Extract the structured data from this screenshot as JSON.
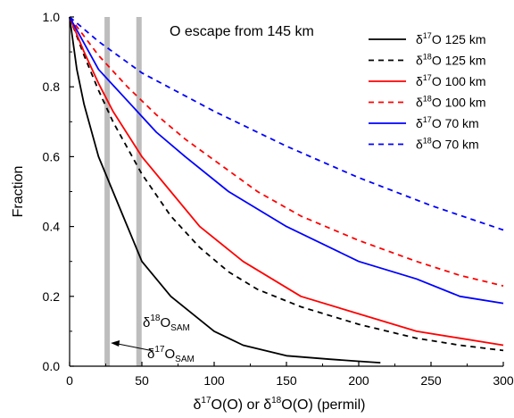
{
  "chart_data": {
    "type": "line",
    "annotation_title": "O escape from 145 km",
    "xlabel_parts": [
      "δ",
      "17",
      "O(O) or δ",
      "18",
      "O(O) (permil)"
    ],
    "ylabel": "Fraction",
    "xlim": [
      0,
      300
    ],
    "ylim": [
      0,
      1.0
    ],
    "x_ticks": [
      0,
      50,
      100,
      150,
      200,
      250,
      300
    ],
    "y_ticks": [
      0.0,
      0.2,
      0.4,
      0.6,
      0.8,
      1.0
    ],
    "x_tick_labels": [
      "0",
      "50",
      "100",
      "150",
      "200",
      "250",
      "300"
    ],
    "y_tick_labels": [
      "0.0",
      "0.2",
      "0.4",
      "0.6",
      "0.8",
      "1.0"
    ],
    "vertical_bands": [
      {
        "x": 26,
        "color": "#bdbdbd"
      },
      {
        "x": 48,
        "color": "#bdbdbd"
      }
    ],
    "sam_labels": [
      {
        "delta": "δ",
        "mass": "18",
        "element": "O",
        "sub": "SAM"
      },
      {
        "delta": "δ",
        "mass": "17",
        "element": "O",
        "sub": "SAM"
      }
    ],
    "series": [
      {
        "name_parts": [
          "δ",
          "17",
          "O 125 km"
        ],
        "color": "#000000",
        "dash": "solid",
        "x": [
          0,
          5,
          10,
          20,
          30,
          40,
          50,
          70,
          100,
          120,
          150,
          180,
          200,
          215
        ],
        "y": [
          1.0,
          0.85,
          0.75,
          0.6,
          0.5,
          0.4,
          0.3,
          0.2,
          0.1,
          0.06,
          0.03,
          0.02,
          0.014,
          0.01
        ]
      },
      {
        "name_parts": [
          "δ",
          "18",
          "O 125 km"
        ],
        "color": "#000000",
        "dash": "dashed",
        "x": [
          0,
          10,
          20,
          30,
          50,
          70,
          90,
          110,
          130,
          160,
          200,
          240,
          270,
          300
        ],
        "y": [
          1.0,
          0.89,
          0.79,
          0.7,
          0.55,
          0.43,
          0.34,
          0.27,
          0.22,
          0.17,
          0.12,
          0.08,
          0.06,
          0.045
        ]
      },
      {
        "name_parts": [
          "δ",
          "17",
          "O 100 km"
        ],
        "color": "#ff0000",
        "dash": "solid",
        "x": [
          0,
          10,
          20,
          30,
          50,
          70,
          90,
          120,
          160,
          200,
          240,
          270,
          300
        ],
        "y": [
          1.0,
          0.9,
          0.81,
          0.73,
          0.6,
          0.5,
          0.4,
          0.3,
          0.2,
          0.15,
          0.1,
          0.08,
          0.06
        ]
      },
      {
        "name_parts": [
          "δ",
          "18",
          "O 100 km"
        ],
        "color": "#ff0000",
        "dash": "dashed",
        "x": [
          0,
          20,
          40,
          60,
          80,
          100,
          130,
          160,
          200,
          240,
          270,
          300
        ],
        "y": [
          1.0,
          0.89,
          0.8,
          0.72,
          0.65,
          0.59,
          0.5,
          0.43,
          0.36,
          0.3,
          0.26,
          0.23
        ]
      },
      {
        "name_parts": [
          "δ",
          "17",
          "O 70 km"
        ],
        "color": "#0000ff",
        "dash": "solid",
        "x": [
          0,
          20,
          40,
          60,
          80,
          110,
          150,
          200,
          240,
          270,
          300
        ],
        "y": [
          1.0,
          0.85,
          0.76,
          0.67,
          0.6,
          0.5,
          0.4,
          0.3,
          0.25,
          0.2,
          0.18
        ]
      },
      {
        "name_parts": [
          "δ",
          "18",
          "O 70 km"
        ],
        "color": "#0000ff",
        "dash": "dashed",
        "x": [
          0,
          20,
          50,
          100,
          150,
          200,
          250,
          300
        ],
        "y": [
          1.0,
          0.93,
          0.84,
          0.73,
          0.63,
          0.54,
          0.46,
          0.39
        ]
      }
    ],
    "legend_position": "top-right",
    "grid": false
  }
}
